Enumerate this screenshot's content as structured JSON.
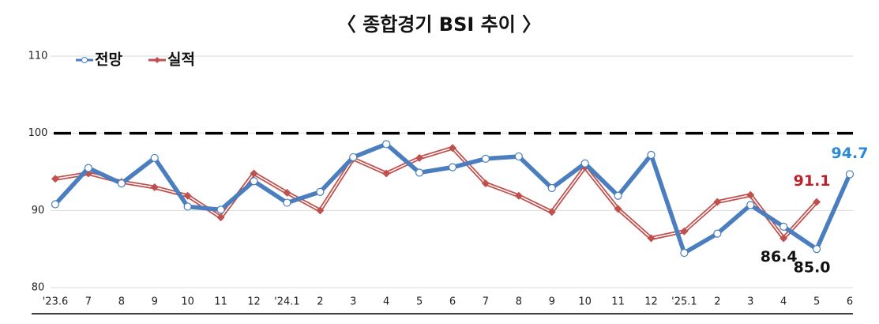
{
  "chart_data": {
    "type": "line",
    "title": "〈 종합경기 BSI 추이 〉",
    "categories": [
      "'23.6",
      "7",
      "8",
      "9",
      "10",
      "11",
      "12",
      "'24.1",
      "2",
      "3",
      "4",
      "5",
      "6",
      "7",
      "8",
      "9",
      "10",
      "11",
      "12",
      "'25.1",
      "2",
      "3",
      "4",
      "5",
      "6"
    ],
    "series": [
      {
        "name": "전망",
        "color": "#4a7ebf",
        "marker": "circle",
        "values": [
          90.8,
          95.5,
          93.5,
          96.8,
          90.5,
          90.1,
          93.8,
          91.0,
          92.4,
          96.9,
          98.6,
          94.9,
          95.6,
          96.7,
          97.0,
          92.9,
          96.1,
          91.9,
          97.2,
          84.5,
          87.0,
          90.7,
          87.9,
          85.0,
          94.7
        ],
        "value_labels": [
          null,
          null,
          null,
          null,
          null,
          null,
          null,
          null,
          null,
          null,
          null,
          null,
          null,
          null,
          null,
          null,
          null,
          null,
          null,
          null,
          null,
          null,
          null,
          "85.0",
          "94.7"
        ],
        "value_label_colors": [
          null,
          null,
          null,
          null,
          null,
          null,
          null,
          null,
          null,
          null,
          null,
          null,
          null,
          null,
          null,
          null,
          null,
          null,
          null,
          null,
          null,
          null,
          null,
          "#111111",
          "#2a8ad8"
        ]
      },
      {
        "name": "실적",
        "color": "#c0504d",
        "marker": "diamond",
        "values": [
          94.1,
          94.8,
          93.7,
          93.0,
          91.9,
          89.1,
          94.8,
          92.3,
          90.0,
          96.7,
          94.8,
          96.8,
          98.1,
          93.5,
          91.9,
          89.8,
          95.6,
          90.2,
          86.4,
          87.3,
          91.1,
          92.0,
          86.4,
          91.1,
          null
        ],
        "value_labels": [
          null,
          null,
          null,
          null,
          null,
          null,
          null,
          null,
          null,
          null,
          null,
          null,
          null,
          null,
          null,
          null,
          null,
          null,
          null,
          null,
          null,
          null,
          "86.4",
          "91.1",
          null
        ],
        "value_label_colors": [
          null,
          null,
          null,
          null,
          null,
          null,
          null,
          null,
          null,
          null,
          null,
          null,
          null,
          null,
          null,
          null,
          null,
          null,
          null,
          null,
          null,
          null,
          "#111111",
          "#c0202a",
          null
        ]
      }
    ],
    "ylim": [
      80,
      110
    ],
    "yticks": [
      80,
      90,
      100,
      110
    ],
    "grid": true,
    "reference_line": 100,
    "legend": "top-left"
  }
}
